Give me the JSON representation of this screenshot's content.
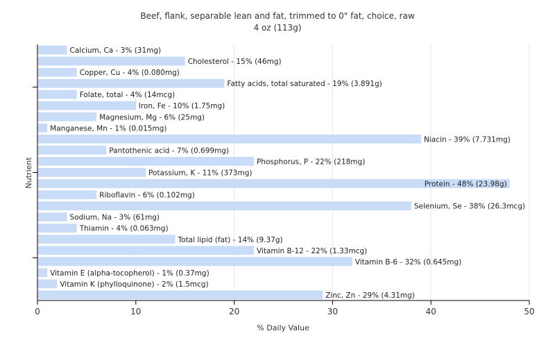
{
  "chart_data": {
    "type": "bar",
    "orientation": "horizontal",
    "title": "Beef, flank, separable lean and fat, trimmed to 0\" fat, choice, raw",
    "subtitle": "4 oz (113g)",
    "xlabel": "% Daily Value",
    "ylabel": "Nutrient",
    "xlim": [
      0,
      50
    ],
    "xticks": [
      0,
      10,
      20,
      30,
      40,
      50
    ],
    "grid": true,
    "colors": {
      "bar": "#c8dcf8",
      "grid": "#e6e6e6",
      "axis": "#000000"
    },
    "categories": [
      "Calcium, Ca",
      "Cholesterol",
      "Copper, Cu",
      "Fatty acids, total saturated",
      "Folate, total",
      "Iron, Fe",
      "Magnesium, Mg",
      "Manganese, Mn",
      "Niacin",
      "Pantothenic acid",
      "Phosphorus, P",
      "Potassium, K",
      "Protein",
      "Riboflavin",
      "Selenium, Se",
      "Sodium, Na",
      "Thiamin",
      "Total lipid (fat)",
      "Vitamin B-12",
      "Vitamin B-6",
      "Vitamin E (alpha-tocopherol)",
      "Vitamin K (phylloquinone)",
      "Zinc, Zn"
    ],
    "values": [
      3,
      15,
      4,
      19,
      4,
      10,
      6,
      1,
      39,
      7,
      22,
      11,
      48,
      6,
      38,
      3,
      4,
      14,
      22,
      32,
      1,
      2,
      29
    ],
    "labels": [
      "Calcium, Ca - 3% (31mg)",
      "Cholesterol - 15% (46mg)",
      "Copper, Cu - 4% (0.080mg)",
      "Fatty acids, total saturated - 19% (3.891g)",
      "Folate, total - 4% (14mcg)",
      "Iron, Fe - 10% (1.75mg)",
      "Magnesium, Mg - 6% (25mg)",
      "Manganese, Mn - 1% (0.015mg)",
      "Niacin - 39% (7.731mg)",
      "Pantothenic acid - 7% (0.699mg)",
      "Phosphorus, P - 22% (218mg)",
      "Potassium, K - 11% (373mg)",
      "Protein - 48% (23.98g)",
      "Riboflavin - 6% (0.102mg)",
      "Selenium, Se - 38% (26.3mcg)",
      "Sodium, Na - 3% (61mg)",
      "Thiamin - 4% (0.063mg)",
      "Total lipid (fat) - 14% (9.37g)",
      "Vitamin B-12 - 22% (1.33mcg)",
      "Vitamin B-6 - 32% (0.645mg)",
      "Vitamin E (alpha-tocopherol) - 1% (0.37mg)",
      "Vitamin K (phylloquinone) - 2% (1.5mcg)",
      "Zinc, Zn - 29% (4.31mg)"
    ]
  }
}
